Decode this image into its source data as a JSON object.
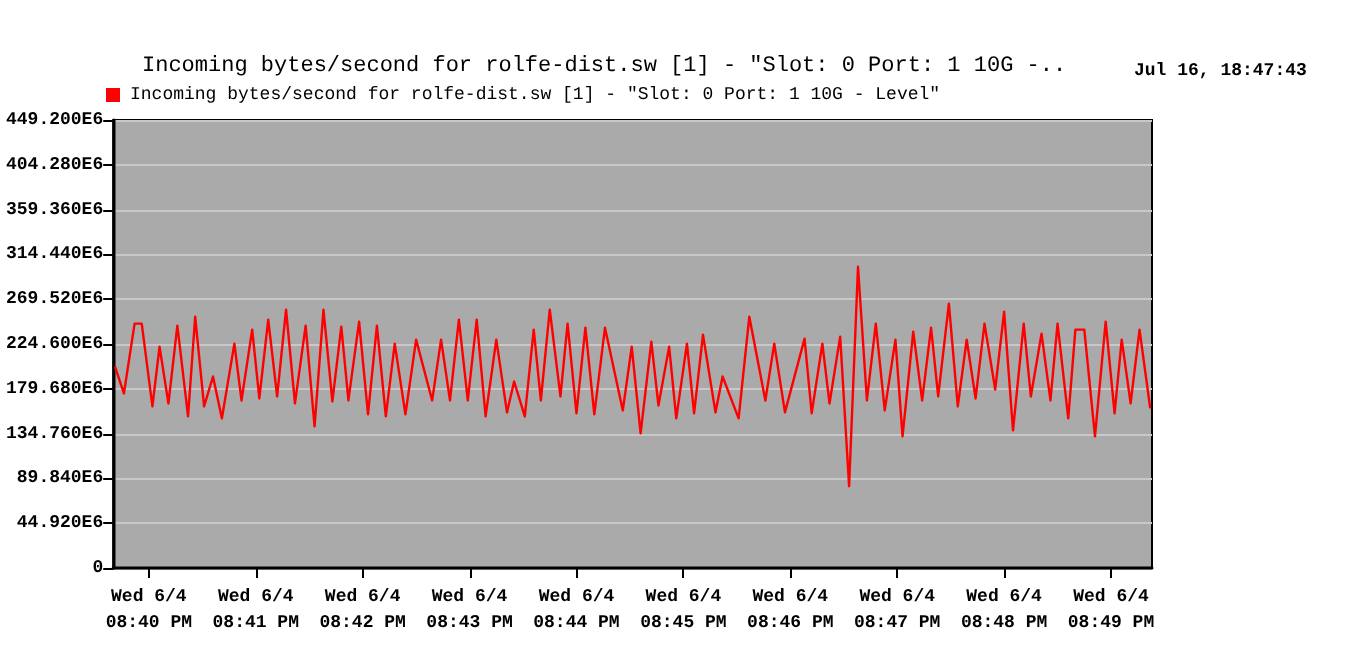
{
  "chart_data": {
    "type": "line",
    "title": "Incoming bytes/second for rolfe-dist.sw [1] - \"Slot: 0 Port: 1 10G -..",
    "annotations": [
      "Jul 16, 18:47:43"
    ],
    "legend": "top left",
    "grid": "y",
    "marker": "none",
    "line_style": "solid",
    "xlim": [
      "--06-04T20:39:40",
      "--06-04T20:49:23"
    ],
    "ylim": [
      0,
      449200000
    ],
    "xticks": [
      {
        "value": "--06-04T20:40",
        "label": "Wed 6/4\n08:40 PM"
      },
      {
        "value": "--06-04T20:41",
        "label": "Wed 6/4\n08:41 PM"
      },
      {
        "value": "--06-04T20:42",
        "label": "Wed 6/4\n08:42 PM"
      },
      {
        "value": "--06-04T20:43",
        "label": "Wed 6/4\n08:43 PM"
      },
      {
        "value": "--06-04T20:44",
        "label": "Wed 6/4\n08:44 PM"
      },
      {
        "value": "--06-04T20:45",
        "label": "Wed 6/4\n08:45 PM"
      },
      {
        "value": "--06-04T20:46",
        "label": "Wed 6/4\n08:46 PM"
      },
      {
        "value": "--06-04T20:47",
        "label": "Wed 6/4\n08:47 PM"
      },
      {
        "value": "--06-04T20:48",
        "label": "Wed 6/4\n08:48 PM"
      },
      {
        "value": "--06-04T20:49",
        "label": "Wed 6/4\n08:49 PM"
      }
    ],
    "yticks": [
      0,
      {
        "value": 44920000,
        "label": "44.920E6"
      },
      {
        "value": 89840000,
        "label": "89.840E6"
      },
      {
        "value": 134760000,
        "label": "134.760E6"
      },
      {
        "value": 179680000,
        "label": "179.680E6"
      },
      {
        "value": 224600000,
        "label": "224.600E6"
      },
      {
        "value": 269520000,
        "label": "269.520E6"
      },
      {
        "value": 314440000,
        "label": "314.440E6"
      },
      {
        "value": 359360000,
        "label": "359.360E6"
      },
      {
        "value": 404280000,
        "label": "404.280E6"
      },
      {
        "value": 449200000,
        "label": "449.200E6"
      }
    ],
    "x": [
      "--06-04T20:39:41",
      "--06-04T20:39:46",
      "--06-04T20:39:52",
      "--06-04T20:39:56",
      "--06-04T20:40:02",
      "--06-04T20:40:06",
      "--06-04T20:40:11",
      "--06-04T20:40:16",
      "--06-04T20:40:22",
      "--06-04T20:40:26",
      "--06-04T20:40:31",
      "--06-04T20:40:36",
      "--06-04T20:40:41",
      "--06-04T20:40:48",
      "--06-04T20:40:52",
      "--06-04T20:40:58",
      "--06-04T20:41:02",
      "--06-04T20:41:07",
      "--06-04T20:41:12",
      "--06-04T20:41:17",
      "--06-04T20:41:22",
      "--06-04T20:41:28",
      "--06-04T20:41:33",
      "--06-04T20:41:38",
      "--06-04T20:41:43",
      "--06-04T20:41:48",
      "--06-04T20:41:52",
      "--06-04T20:41:58",
      "--06-04T20:42:03",
      "--06-04T20:42:08",
      "--06-04T20:42:13",
      "--06-04T20:42:18",
      "--06-04T20:42:24",
      "--06-04T20:42:30",
      "--06-04T20:42:39",
      "--06-04T20:42:44",
      "--06-04T20:42:49",
      "--06-04T20:42:54",
      "--06-04T20:42:59",
      "--06-04T20:43:04",
      "--06-04T20:43:09",
      "--06-04T20:43:15",
      "--06-04T20:43:21",
      "--06-04T20:43:25",
      "--06-04T20:43:31",
      "--06-04T20:43:36",
      "--06-04T20:43:40",
      "--06-04T20:43:45",
      "--06-04T20:43:51",
      "--06-04T20:43:55",
      "--06-04T20:44:00",
      "--06-04T20:44:05",
      "--06-04T20:44:10",
      "--06-04T20:44:16",
      "--06-04T20:44:26",
      "--06-04T20:44:31",
      "--06-04T20:44:36",
      "--06-04T20:44:42",
      "--06-04T20:44:46",
      "--06-04T20:44:52",
      "--06-04T20:44:56",
      "--06-04T20:45:02",
      "--06-04T20:45:06",
      "--06-04T20:45:11",
      "--06-04T20:45:18",
      "--06-04T20:45:22",
      "--06-04T20:45:31",
      "--06-04T20:45:37",
      "--06-04T20:45:46",
      "--06-04T20:45:51",
      "--06-04T20:45:57",
      "--06-04T20:46:08",
      "--06-04T20:46:12",
      "--06-04T20:46:18",
      "--06-04T20:46:22",
      "--06-04T20:46:28",
      "--06-04T20:46:33",
      "--06-04T20:46:38",
      "--06-04T20:46:43",
      "--06-04T20:46:48",
      "--06-04T20:46:53",
      "--06-04T20:46:59",
      "--06-04T20:47:03",
      "--06-04T20:47:09",
      "--06-04T20:47:14",
      "--06-04T20:47:19",
      "--06-04T20:47:23",
      "--06-04T20:47:29",
      "--06-04T20:47:34",
      "--06-04T20:47:39",
      "--06-04T20:47:44",
      "--06-04T20:47:49",
      "--06-04T20:47:55",
      "--06-04T20:48:00",
      "--06-04T20:48:05",
      "--06-04T20:48:11",
      "--06-04T20:48:15",
      "--06-04T20:48:21",
      "--06-04T20:48:26",
      "--06-04T20:48:30",
      "--06-04T20:48:36",
      "--06-04T20:48:40",
      "--06-04T20:48:45",
      "--06-04T20:48:51",
      "--06-04T20:48:57",
      "--06-04T20:49:02",
      "--06-04T20:49:06",
      "--06-04T20:49:11",
      "--06-04T20:49:16",
      "--06-04T20:49:22"
    ],
    "series": [
      {
        "name": "Incoming bytes/second for rolfe-dist.sw [1] - \"Slot: 0 Port: 1 10G - Level\"",
        "color": "#ff0000",
        "values": [
          202000000,
          175000000,
          245000000,
          245000000,
          162000000,
          222000000,
          165000000,
          243000000,
          152000000,
          252000000,
          162000000,
          192000000,
          150000000,
          225000000,
          168000000,
          239000000,
          170000000,
          249000000,
          172000000,
          259000000,
          165000000,
          243000000,
          142000000,
          259000000,
          167000000,
          242000000,
          168000000,
          247000000,
          154000000,
          243000000,
          152000000,
          225000000,
          154000000,
          229000000,
          168000000,
          229000000,
          168000000,
          249000000,
          168000000,
          249000000,
          152000000,
          229000000,
          156000000,
          187000000,
          152000000,
          239000000,
          168000000,
          259000000,
          172000000,
          245000000,
          155000000,
          241000000,
          154000000,
          241000000,
          158000000,
          222000000,
          135000000,
          227000000,
          163000000,
          222000000,
          150000000,
          225000000,
          155000000,
          234000000,
          156000000,
          192000000,
          150000000,
          252000000,
          168000000,
          225000000,
          156000000,
          230000000,
          155000000,
          225000000,
          165000000,
          232000000,
          82000000,
          302000000,
          168000000,
          245000000,
          158000000,
          229000000,
          132000000,
          237000000,
          168000000,
          241000000,
          172000000,
          265000000,
          162000000,
          229000000,
          170000000,
          245000000,
          179000000,
          257000000,
          138000000,
          245000000,
          172000000,
          235000000,
          168000000,
          245000000,
          150000000,
          239000000,
          239000000,
          132000000,
          247000000,
          155000000,
          229000000,
          165000000,
          239000000,
          160000000
        ]
      }
    ]
  }
}
